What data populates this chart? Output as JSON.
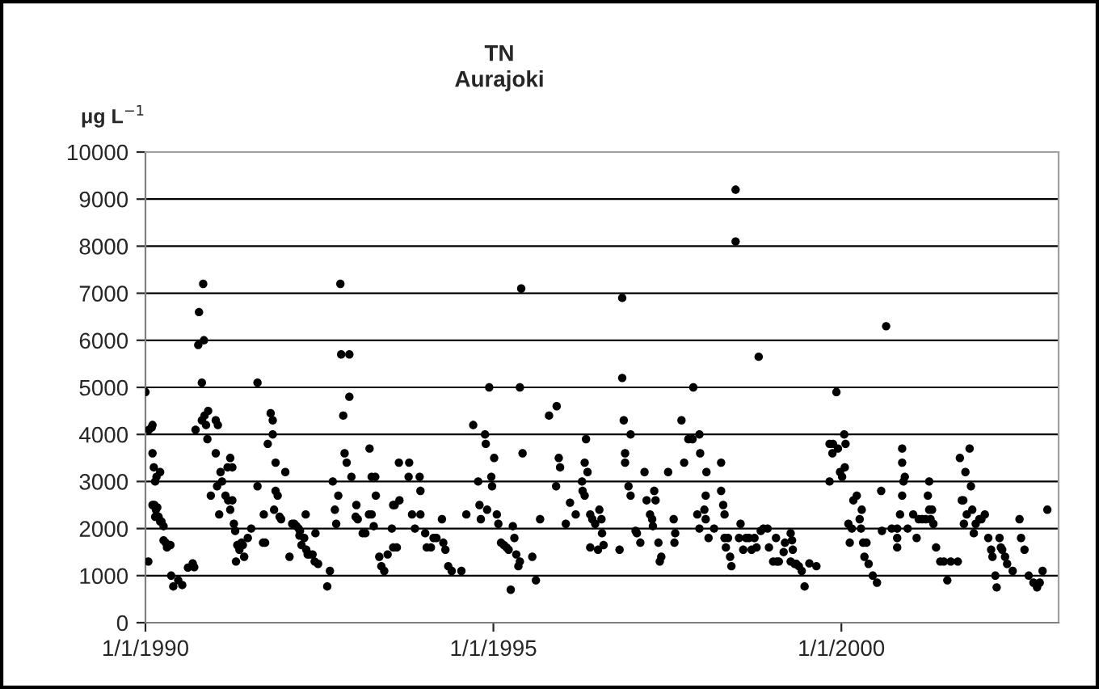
{
  "chart_data": {
    "type": "scatter",
    "title": "TN\nAurajoki",
    "ylabel": "μg L$^{−1}$",
    "x": [
      "1990-01-01",
      "1990-01-16",
      "1990-01-19",
      "1990-02-03",
      "1990-02-07",
      "1990-02-07",
      "1990-02-14",
      "1990-02-21",
      "1990-02-28",
      "1990-03-19",
      "1990-02-07",
      "1990-02-17",
      "1990-03-04",
      "1990-02-25",
      "1990-02-21",
      "1990-03-11",
      "1990-03-19",
      "1990-03-26",
      "1990-04-06",
      "1990-04-06",
      "1990-04-17",
      "1990-04-24",
      "1990-05-12",
      "1990-05-16",
      "1990-05-27",
      "1990-06-22",
      "1990-07-13",
      "1990-08-12",
      "1990-09-06",
      "1990-09-14",
      "1990-09-21",
      "1990-10-09",
      "1990-10-05",
      "1990-11-04",
      "1990-10-24",
      "1990-10-31",
      "1990-10-24",
      "1990-11-07",
      "1990-11-26",
      "1990-11-15",
      "1990-11-22",
      "1990-12-10",
      "1991-01-05",
      "1991-01-16",
      "1991-01-05",
      "1991-01-12",
      "1991-01-23",
      "1991-01-30",
      "1991-02-07",
      "1991-02-25",
      "1991-03-08",
      "1991-03-22",
      "1991-04-02",
      "1991-03-11",
      "1991-04-02",
      "1991-03-22",
      "1991-04-10",
      "1991-04-17",
      "1991-04-21",
      "1991-04-28",
      "1991-05-09",
      "1991-05-20",
      "1991-05-27",
      "1991-06-03",
      "1991-06-22",
      "1991-07-10",
      "1991-08-12",
      "1991-08-12",
      "1991-09-10",
      "1991-09-21",
      "1991-09-14",
      "1991-10-05",
      "1991-10-20",
      "1991-10-31",
      "1991-10-31",
      "1991-11-15",
      "1991-11-07",
      "1991-11-15",
      "1991-11-26",
      "1991-12-06",
      "1991-12-14",
      "1992-01-05",
      "1992-01-27",
      "1992-02-10",
      "1992-02-21",
      "1992-03-04",
      "1992-03-15",
      "1992-03-19",
      "1992-03-22",
      "1992-03-30",
      "1992-04-13",
      "1992-04-21",
      "1992-04-24",
      "1992-05-01",
      "1992-05-12",
      "1992-05-27",
      "1992-06-07",
      "1992-06-11",
      "1992-06-25",
      "1992-08-12",
      "1992-08-26",
      "1992-09-10",
      "1992-09-21",
      "1992-09-28",
      "1992-10-09",
      "1992-10-20",
      "1992-10-24",
      "1992-12-06",
      "1992-11-04",
      "1992-12-06",
      "1992-11-11",
      "1992-11-22",
      "1992-12-17",
      "1993-01-12",
      "1993-01-08",
      "1993-01-19",
      "1993-02-14",
      "1993-02-28",
      "1993-03-22",
      "1993-04-02",
      "1993-04-21",
      "1993-04-24",
      "1993-03-19",
      "1993-04-02",
      "1993-04-13",
      "1993-05-12",
      "1993-05-23",
      "1993-06-07",
      "1993-07-17",
      "1993-07-24",
      "1993-08-12",
      "1993-08-23",
      "1993-08-26",
      "1993-10-16",
      "1993-10-13",
      "1993-10-31",
      "1993-11-15",
      "1993-12-10",
      "1993-06-25",
      "1993-07-24",
      "1993-08-01",
      "1993-12-14",
      "1993-12-14",
      "1994-01-08",
      "1994-01-16",
      "1994-02-07",
      "1994-02-21",
      "1994-03-08",
      "1994-04-06",
      "1994-04-13",
      "1994-04-24",
      "1994-05-09",
      "1994-05-27",
      "1994-07-17",
      "1994-08-12",
      "1994-09-17",
      "1994-10-13",
      "1994-10-20",
      "1994-10-27",
      "1994-11-18",
      "1994-11-22",
      "1994-11-29",
      "1994-12-10",
      "1994-12-21",
      "1994-12-25",
      "1995-01-05",
      "1995-01-19",
      "1995-01-27",
      "1995-02-10",
      "1995-02-25",
      "1995-03-11",
      "1995-03-22",
      "1995-04-02",
      "1995-04-13",
      "1995-04-21",
      "1995-05-01",
      "1995-05-12",
      "1995-05-20",
      "1995-05-27",
      "1995-05-20",
      "1995-06-03",
      "1995-07-24",
      "1995-08-12",
      "1995-09-03",
      "1995-10-20",
      "1995-11-29",
      "1995-12-10",
      "1995-12-17",
      "1995-11-26",
      "1996-01-16",
      "1996-02-07",
      "1996-03-08",
      "1996-04-10",
      "1996-04-13",
      "1996-04-24",
      "1996-05-01",
      "1996-04-24",
      "1996-05-09",
      "1996-05-23",
      "1996-05-23",
      "1996-06-03",
      "1996-06-18",
      "1996-07-03",
      "1996-07-10",
      "1996-07-21",
      "1996-07-24",
      "1996-08-01",
      "1996-10-24",
      "1996-11-07",
      "1996-11-07",
      "1996-11-15",
      "1996-11-22",
      "1996-11-22",
      "1996-12-21",
      "1996-12-10",
      "1996-12-21",
      "1997-01-16",
      "1997-01-23",
      "1997-02-10",
      "1997-03-04",
      "1997-03-15",
      "1997-04-02",
      "1997-04-13",
      "1997-04-17",
      "1997-04-24",
      "1997-05-01",
      "1997-05-16",
      "1997-05-23",
      "1997-05-31",
      "1997-07-06",
      "1997-08-04",
      "1997-08-12",
      "1997-08-08",
      "1997-09-14",
      "1997-09-28",
      "1997-10-20",
      "1997-11-11",
      "1997-11-15",
      "1997-12-17",
      "1997-12-21",
      "1997-12-06",
      "1997-12-17",
      "1998-01-12",
      "1998-01-19",
      "1998-01-19",
      "1998-01-23",
      "1998-02-03",
      "1998-03-04",
      "1998-04-10",
      "1998-04-10",
      "1998-04-21",
      "1998-04-28",
      "1998-04-28",
      "1998-05-05",
      "1998-05-16",
      "1998-05-27",
      "1998-06-03",
      "1998-06-25",
      "1998-06-25",
      "1998-07-21",
      "1998-07-13",
      "1998-08-04",
      "1998-08-19",
      "1998-09-03",
      "1998-09-17",
      "1998-10-02",
      "1998-10-13",
      "1998-10-24",
      "1998-11-04",
      "1998-11-18",
      "1998-12-10",
      "1998-12-17",
      "1999-01-08",
      "1999-01-23",
      "1999-01-27",
      "1999-02-07",
      "1999-03-04",
      "1999-03-11",
      "1999-04-10",
      "1999-04-17",
      "1999-04-21",
      "1999-04-10",
      "1999-05-01",
      "1999-05-09",
      "1999-05-23",
      "1999-06-07",
      "1999-06-22",
      "1999-07-17",
      "1999-08-23",
      "1999-10-31",
      "1999-10-31",
      "1999-11-18",
      "1999-11-15",
      "1999-12-06",
      "1999-12-14",
      "1999-12-25",
      "2000-01-05",
      "2000-01-16",
      "2000-01-23",
      "2000-01-19",
      "2000-02-07",
      "2000-02-14",
      "2000-02-25",
      "2000-03-04",
      "2000-03-22",
      "2000-04-06",
      "2000-04-13",
      "2000-04-17",
      "2000-04-24",
      "2000-05-12",
      "2000-05-01",
      "2000-05-23",
      "2000-06-14",
      "2000-07-06",
      "2000-07-28",
      "2000-08-01",
      "2000-08-23",
      "2000-09-21",
      "2000-10-20",
      "2000-10-20",
      "2000-10-20",
      "2000-11-04",
      "2000-11-15",
      "2000-11-22",
      "2000-11-15",
      "2000-11-15",
      "2000-11-29",
      "2000-12-14",
      "2001-01-12",
      "2001-01-30",
      "2001-02-10",
      "2001-02-28",
      "2001-03-19",
      "2001-03-30",
      "2001-04-06",
      "2001-04-06",
      "2001-04-13",
      "2001-04-21",
      "2001-04-28",
      "2001-05-12",
      "2001-06-03",
      "2001-06-22",
      "2001-07-10",
      "2001-07-28",
      "2001-09-03",
      "2001-09-14",
      "2001-09-24",
      "2001-10-02",
      "2001-10-13",
      "2001-11-04",
      "2001-11-11",
      "2001-10-05",
      "2001-10-20",
      "2001-11-18",
      "2001-11-26",
      "2001-12-06",
      "2001-12-25",
      "2002-01-05",
      "2002-01-23",
      "2002-02-10",
      "2002-02-25",
      "2002-03-04",
      "2002-03-19",
      "2002-03-26",
      "2002-04-10",
      "2002-04-17",
      "2002-04-24",
      "2002-05-09",
      "2002-05-20",
      "2002-06-18",
      "2002-07-24",
      "2002-08-01",
      "2002-08-19",
      "2002-09-10",
      "2002-10-05",
      "2002-10-24",
      "2002-11-07",
      "2002-11-22",
      "2002-12-17"
    ],
    "values": [
      4900,
      1300,
      4100,
      4150,
      4200,
      3600,
      3300,
      3000,
      3100,
      3200,
      2500,
      2500,
      2450,
      2400,
      2250,
      2250,
      2150,
      2150,
      2050,
      1750,
      1700,
      1600,
      1650,
      1000,
      770,
      900,
      800,
      1170,
      1260,
      1180,
      4100,
      6600,
      5900,
      6000,
      5100,
      7200,
      4300,
      4400,
      4500,
      4200,
      3900,
      2700,
      4300,
      4200,
      3600,
      2900,
      2300,
      3200,
      3000,
      2700,
      3300,
      3500,
      3300,
      2600,
      2600,
      2400,
      2100,
      1950,
      1300,
      1650,
      1550,
      1700,
      1650,
      1400,
      1800,
      2000,
      5100,
      2900,
      1700,
      1700,
      2300,
      3800,
      4450,
      4300,
      4000,
      3400,
      2400,
      2800,
      2700,
      2250,
      2200,
      3200,
      1400,
      2100,
      2100,
      2050,
      2000,
      1850,
      1950,
      1650,
      1800,
      2300,
      1550,
      1450,
      1450,
      1450,
      1300,
      1900,
      1250,
      770,
      1100,
      3000,
      2400,
      2100,
      2700,
      7200,
      5700,
      5700,
      4400,
      4800,
      3600,
      3400,
      3100,
      2500,
      2250,
      2200,
      1900,
      1900,
      3700,
      3100,
      3100,
      2700,
      2300,
      2300,
      2050,
      1400,
      1200,
      1100,
      2000,
      2500,
      1600,
      3400,
      2600,
      3400,
      3100,
      2300,
      2000,
      3100,
      1450,
      1600,
      2500,
      2300,
      2800,
      1900,
      1600,
      1600,
      1800,
      1800,
      2200,
      1700,
      1550,
      1200,
      1100,
      1100,
      2300,
      4200,
      3000,
      2500,
      2200,
      4000,
      3800,
      2400,
      5000,
      3100,
      2900,
      3500,
      2300,
      2100,
      1700,
      1650,
      1600,
      1550,
      700,
      2050,
      1800,
      1450,
      1200,
      1300,
      7100,
      5000,
      3600,
      1400,
      900,
      2200,
      4400,
      4600,
      3500,
      3300,
      2900,
      2100,
      2550,
      2300,
      3000,
      2800,
      2700,
      3900,
      3400,
      3200,
      2300,
      1600,
      2200,
      2100,
      1550,
      2400,
      2200,
      1900,
      1650,
      1550,
      6900,
      5200,
      4300,
      3600,
      3400,
      4000,
      2900,
      2700,
      1950,
      1900,
      1700,
      3200,
      2600,
      2300,
      2200,
      2050,
      2800,
      2600,
      1700,
      1300,
      1400,
      3200,
      2200,
      1900,
      1700,
      4300,
      3400,
      3900,
      3900,
      5000,
      4000,
      3600,
      2300,
      2000,
      2400,
      2200,
      2700,
      3200,
      1800,
      2000,
      3400,
      2800,
      2500,
      2300,
      1800,
      1600,
      1800,
      1400,
      1200,
      9200,
      8100,
      2100,
      1800,
      1550,
      1800,
      1800,
      1550,
      1800,
      1600,
      5650,
      1950,
      2000,
      2000,
      1600,
      1300,
      1800,
      1300,
      1300,
      1500,
      1700,
      1900,
      1750,
      1550,
      1300,
      1250,
      1250,
      1200,
      1100,
      770,
      1260,
      1200,
      3000,
      3800,
      3800,
      3600,
      4900,
      3700,
      3200,
      3100,
      4000,
      3800,
      3300,
      2100,
      1700,
      2000,
      2600,
      2700,
      2200,
      2000,
      2400,
      1700,
      1700,
      1400,
      1250,
      1000,
      850,
      2800,
      1950,
      6300,
      2000,
      2000,
      1800,
      1600,
      2300,
      2700,
      3000,
      3400,
      3700,
      3100,
      2000,
      2300,
      1800,
      2200,
      2200,
      2200,
      2700,
      3000,
      2400,
      2200,
      2400,
      2100,
      1600,
      1300,
      1300,
      900,
      1300,
      1300,
      3500,
      2600,
      2600,
      3200,
      3700,
      2900,
      2100,
      2300,
      2400,
      1900,
      2100,
      2200,
      2200,
      2300,
      1800,
      1550,
      1400,
      1000,
      750,
      1800,
      1600,
      1550,
      1400,
      1250,
      1100,
      2200,
      1800,
      1550,
      1000,
      850,
      750,
      850,
      1100,
      2400
    ],
    "color": "#000000",
    "marker": "circle",
    "xlim": [
      "1990-01-01",
      "2003-02-14"
    ],
    "xticks": [
      {
        "value": "1990-01-01",
        "label": "1/1/1990"
      },
      {
        "value": "1995-01-01",
        "label": "1/1/1995"
      },
      {
        "value": "2000-01-01",
        "label": "1/1/2000"
      }
    ],
    "ylim": [
      0,
      10000
    ],
    "yticks": [
      0,
      1000,
      2000,
      3000,
      4000,
      5000,
      6000,
      7000,
      8000,
      9000,
      10000
    ],
    "grid": "y"
  }
}
